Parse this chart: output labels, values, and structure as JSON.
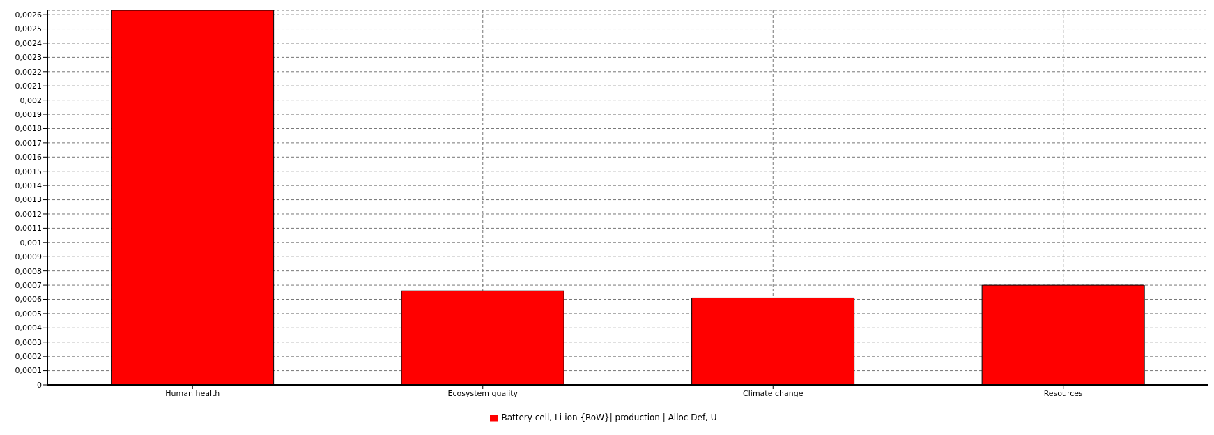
{
  "chart_data": {
    "type": "bar",
    "categories": [
      "Human health",
      "Ecosystem quality",
      "Climate change",
      "Resources"
    ],
    "series": [
      {
        "name": "Battery cell, Li-ion {RoW}| production | Alloc Def, U",
        "color": "#ff0000",
        "values": [
          0.00263,
          0.00066,
          0.00061,
          0.0007
        ]
      }
    ],
    "ylim": [
      0,
      0.00263
    ],
    "yticks": [
      0,
      {
        "value": 0.0001,
        "label": "0,0001"
      },
      {
        "value": 0.0002,
        "label": "0,0002"
      },
      {
        "value": 0.0003,
        "label": "0,0003"
      },
      {
        "value": 0.0004,
        "label": "0,0004"
      },
      {
        "value": 0.0005,
        "label": "0,0005"
      },
      {
        "value": 0.0006,
        "label": "0,0006"
      },
      {
        "value": 0.0007,
        "label": "0,0007"
      },
      {
        "value": 0.0008,
        "label": "0,0008"
      },
      {
        "value": 0.0009,
        "label": "0,0009"
      },
      {
        "value": 0.001,
        "label": "0,001"
      },
      {
        "value": 0.0011,
        "label": "0,0011"
      },
      {
        "value": 0.0012,
        "label": "0,0012"
      },
      {
        "value": 0.0013,
        "label": "0,0013"
      },
      {
        "value": 0.0014,
        "label": "0,0014"
      },
      {
        "value": 0.0015,
        "label": "0,0015"
      },
      {
        "value": 0.0016,
        "label": "0,0016"
      },
      {
        "value": 0.0017,
        "label": "0,0017"
      },
      {
        "value": 0.0018,
        "label": "0,0018"
      },
      {
        "value": 0.0019,
        "label": "0,0019"
      },
      {
        "value": 0.002,
        "label": "0,002"
      },
      {
        "value": 0.0021,
        "label": "0,0021"
      },
      {
        "value": 0.0022,
        "label": "0,0022"
      },
      {
        "value": 0.0023,
        "label": "0,0023"
      },
      {
        "value": 0.0024,
        "label": "0,0024"
      },
      {
        "value": 0.0025,
        "label": "0,0025"
      },
      {
        "value": 0.0026,
        "label": "0,0026"
      }
    ],
    "grid": true,
    "legend": "bottom"
  }
}
